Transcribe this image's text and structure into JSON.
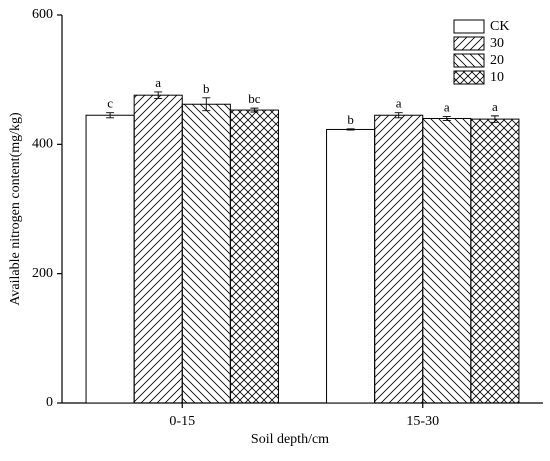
{
  "chart_data": {
    "type": "bar",
    "x_label": "Soil depth/cm",
    "y_label": "Available nitrogen content(mg/kg)",
    "categories": [
      "0-15",
      "15-30"
    ],
    "series": [
      {
        "name": "CK",
        "color": "#000000",
        "hatch": "none",
        "values": [
          445,
          423
        ],
        "errors": [
          4,
          1
        ],
        "letters": [
          "c",
          "b"
        ]
      },
      {
        "name": "30",
        "color": "#000000",
        "hatch": "/",
        "values": [
          476,
          445
        ],
        "errors": [
          5,
          4
        ],
        "letters": [
          "a",
          "a"
        ]
      },
      {
        "name": "20",
        "color": "#000000",
        "hatch": "\\",
        "values": [
          462,
          440
        ],
        "errors": [
          10,
          3
        ],
        "letters": [
          "b",
          "a"
        ]
      },
      {
        "name": "10",
        "color": "#000000",
        "hatch": "x",
        "values": [
          453,
          439
        ],
        "errors": [
          3,
          5
        ],
        "letters": [
          "bc",
          "a"
        ]
      }
    ],
    "ylim": [
      0,
      600
    ],
    "yticks": [
      0,
      200,
      400,
      600
    ],
    "legend": "upper right"
  }
}
